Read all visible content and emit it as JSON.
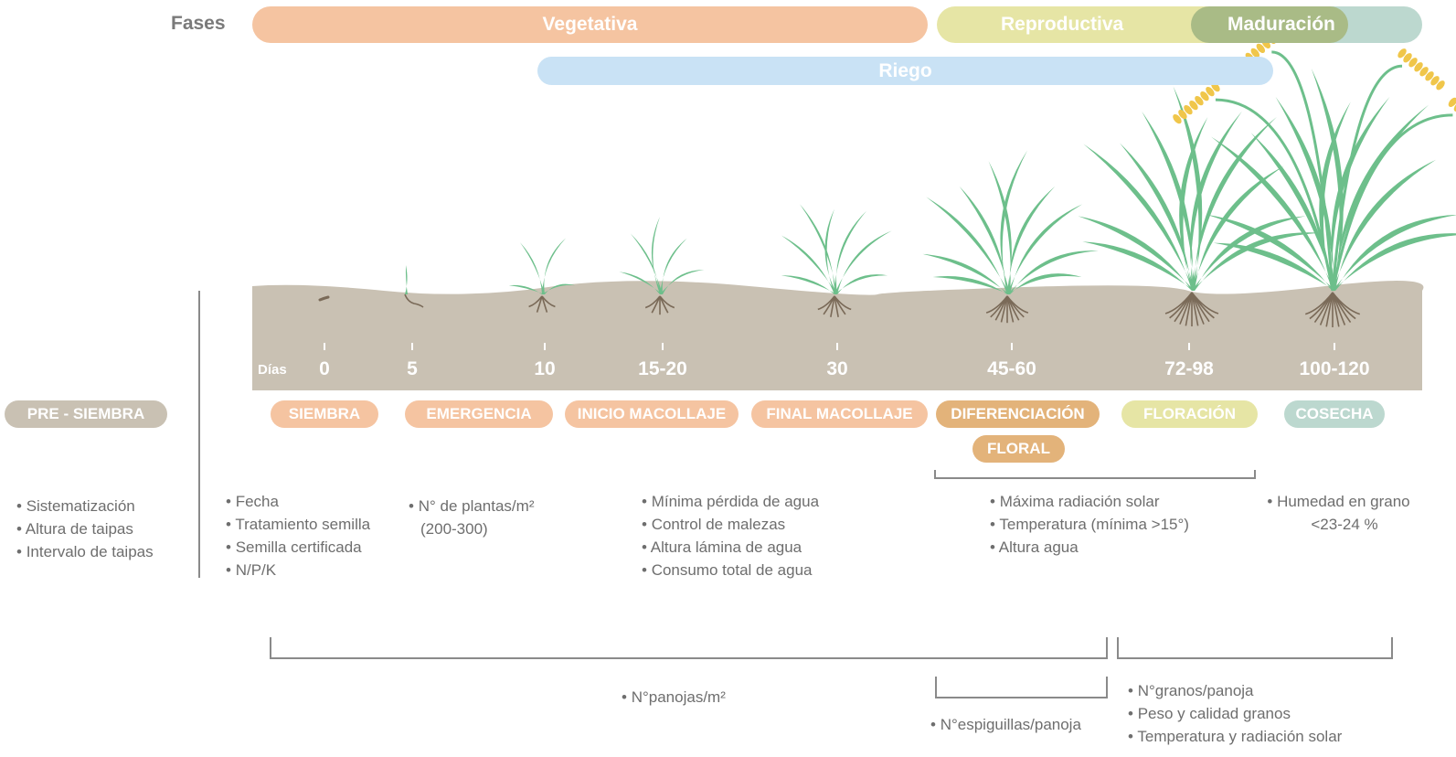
{
  "phases": {
    "label": "Fases",
    "items": [
      "Vegetativa",
      "Reproductiva",
      "Maduración"
    ]
  },
  "irrigation": "Riego",
  "days": {
    "label": "Días",
    "values": [
      "0",
      "5",
      "10",
      "15-20",
      "30",
      "45-60",
      "72-98",
      "100-120"
    ]
  },
  "stages": [
    [
      "PRE - SIEMBRA"
    ],
    [
      "SIEMBRA"
    ],
    [
      "EMERGENCIA"
    ],
    [
      "INICIO MACOLLAJE"
    ],
    [
      "FINAL MACOLLAJE"
    ],
    [
      "DIFERENCIACIÓN",
      "FLORAL"
    ],
    [
      "FLORACIÓN"
    ],
    [
      "COSECHA"
    ]
  ],
  "practices": [
    [
      "Sistematización",
      "Altura de taipas",
      "Intervalo de taipas"
    ],
    [
      "Fecha",
      "Tratamiento semilla",
      "Semilla certificada",
      "N/P/K"
    ],
    [
      "N° de plantas/m² (200-300)"
    ],
    [
      "Mínima pérdida de agua",
      "Control de malezas",
      "Altura lámina de agua",
      "Consumo total de agua"
    ],
    [
      "Máxima radiación solar",
      "Temperatura (mínima >15°)",
      "Altura agua"
    ],
    [
      "Humedad en grano <23-24 %"
    ]
  ],
  "components": [
    [
      "N°panojas/m²"
    ],
    [
      "N°espiguillas/panoja"
    ],
    [
      "N°granos/panoja",
      "Peso y calidad granos",
      "Temperatura y radiación solar"
    ]
  ]
}
